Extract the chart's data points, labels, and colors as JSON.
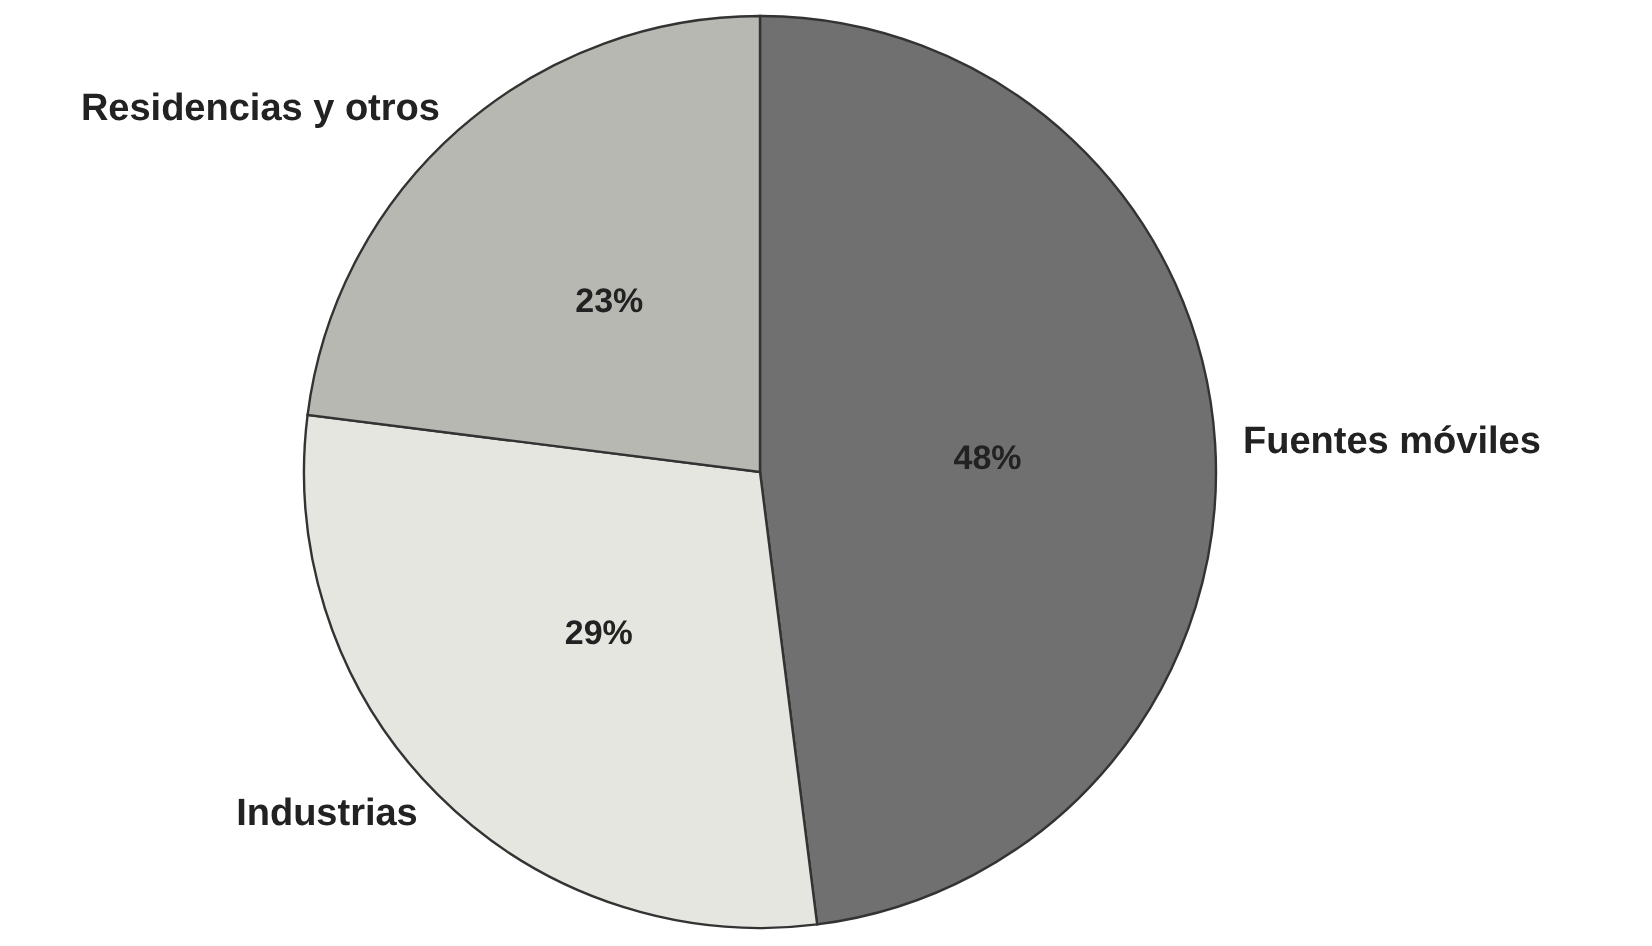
{
  "chart_data": {
    "type": "pie",
    "categories": [
      "Fuentes móviles",
      "Industrias",
      "Residencias y otros"
    ],
    "values": [
      48,
      29,
      23
    ],
    "colors": [
      "#707070",
      "#e6e6e0",
      "#b8b8b2"
    ],
    "value_labels": [
      "48%",
      "29%",
      "23%"
    ]
  }
}
